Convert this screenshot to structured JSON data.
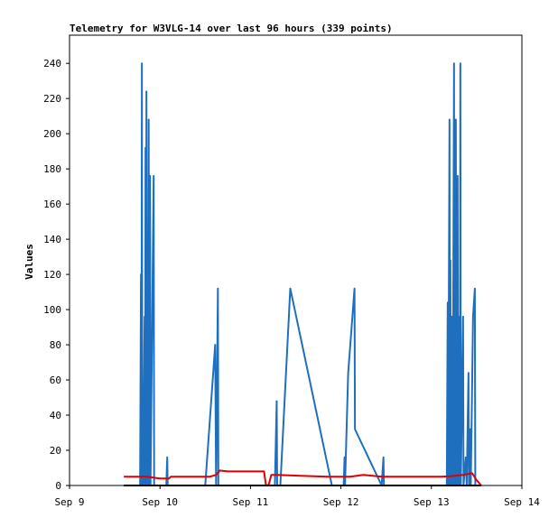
{
  "chart_data": {
    "type": "line",
    "title": "Telemetry for W3VLG-14 over last 96 hours (339 points)",
    "xlabel": "",
    "ylabel": "Values",
    "x_categories": [
      "Sep 9",
      "Sep 10",
      "Sep 11",
      "Sep 12",
      "Sep 13",
      "Sep 14"
    ],
    "x_range": [
      "Sep 9 00:00",
      "Sep 14 00:00"
    ],
    "x_unit": "day",
    "x_tick_values": [
      0,
      1,
      2,
      3,
      4,
      5
    ],
    "ylim": [
      0,
      256
    ],
    "y_ticks": [
      0,
      20,
      40,
      60,
      80,
      100,
      120,
      140,
      160,
      180,
      200,
      220,
      240
    ],
    "y_tick_labels": [
      "0",
      "20",
      "40",
      "60",
      "80",
      "100",
      "120",
      "140",
      "160",
      "180",
      "200",
      "220",
      "240"
    ],
    "grid": false,
    "legend": "none",
    "series": [
      {
        "color": "#1f6fbf",
        "points": [
          [
            0.78,
            0
          ],
          [
            0.79,
            120
          ],
          [
            0.795,
            0
          ],
          [
            0.8,
            240
          ],
          [
            0.805,
            0
          ],
          [
            0.81,
            48
          ],
          [
            0.815,
            0
          ],
          [
            0.83,
            96
          ],
          [
            0.835,
            0
          ],
          [
            0.84,
            192
          ],
          [
            0.845,
            0
          ],
          [
            0.85,
            224
          ],
          [
            0.855,
            0
          ],
          [
            0.86,
            96
          ],
          [
            0.865,
            0
          ],
          [
            0.875,
            208
          ],
          [
            0.88,
            0
          ],
          [
            0.89,
            176
          ],
          [
            0.895,
            0
          ],
          [
            0.93,
            176
          ],
          [
            0.935,
            0
          ],
          [
            1.07,
            0
          ],
          [
            1.08,
            16
          ],
          [
            1.085,
            0
          ],
          [
            1.5,
            0
          ],
          [
            1.61,
            80
          ],
          [
            1.62,
            0
          ],
          [
            1.64,
            112
          ],
          [
            1.645,
            0
          ],
          [
            2.27,
            0
          ],
          [
            2.29,
            48
          ],
          [
            2.295,
            0
          ],
          [
            2.33,
            0
          ],
          [
            2.44,
            112
          ],
          [
            2.9,
            0
          ],
          [
            3.03,
            0
          ],
          [
            3.04,
            16
          ],
          [
            3.045,
            0
          ],
          [
            3.08,
            64
          ],
          [
            3.15,
            112
          ],
          [
            3.155,
            32
          ],
          [
            3.45,
            0
          ],
          [
            3.47,
            16
          ],
          [
            3.475,
            0
          ],
          [
            4.17,
            0
          ],
          [
            4.18,
            104
          ],
          [
            4.185,
            0
          ],
          [
            4.2,
            208
          ],
          [
            4.205,
            0
          ],
          [
            4.21,
            128
          ],
          [
            4.215,
            0
          ],
          [
            4.23,
            96
          ],
          [
            4.235,
            0
          ],
          [
            4.25,
            240
          ],
          [
            4.255,
            0
          ],
          [
            4.27,
            208
          ],
          [
            4.275,
            0
          ],
          [
            4.29,
            176
          ],
          [
            4.295,
            0
          ],
          [
            4.31,
            96
          ],
          [
            4.315,
            0
          ],
          [
            4.32,
            240
          ],
          [
            4.325,
            0
          ],
          [
            4.35,
            96
          ],
          [
            4.355,
            0
          ],
          [
            4.38,
            16
          ],
          [
            4.39,
            0
          ],
          [
            4.41,
            64
          ],
          [
            4.415,
            0
          ],
          [
            4.43,
            32
          ],
          [
            4.435,
            0
          ],
          [
            4.46,
            96
          ],
          [
            4.48,
            112
          ],
          [
            4.485,
            0
          ]
        ]
      },
      {
        "color": "#e00000",
        "points": [
          [
            0.6,
            5
          ],
          [
            0.85,
            5
          ],
          [
            1.0,
            4
          ],
          [
            1.1,
            4
          ],
          [
            1.12,
            5
          ],
          [
            1.55,
            5
          ],
          [
            1.62,
            6
          ],
          [
            1.66,
            8.5
          ],
          [
            1.75,
            8
          ],
          [
            2.15,
            8
          ],
          [
            2.17,
            0.5
          ],
          [
            2.2,
            0
          ],
          [
            2.23,
            6
          ],
          [
            2.3,
            6
          ],
          [
            2.55,
            5.5
          ],
          [
            2.85,
            5
          ],
          [
            3.1,
            5
          ],
          [
            3.25,
            6
          ],
          [
            3.45,
            5
          ],
          [
            4.1,
            5
          ],
          [
            4.2,
            5.2
          ],
          [
            4.35,
            6
          ],
          [
            4.45,
            7
          ],
          [
            4.5,
            3
          ],
          [
            4.55,
            0
          ]
        ]
      },
      {
        "color": "#000000",
        "points": [
          [
            0.6,
            0
          ],
          [
            4.55,
            0
          ]
        ]
      }
    ]
  }
}
